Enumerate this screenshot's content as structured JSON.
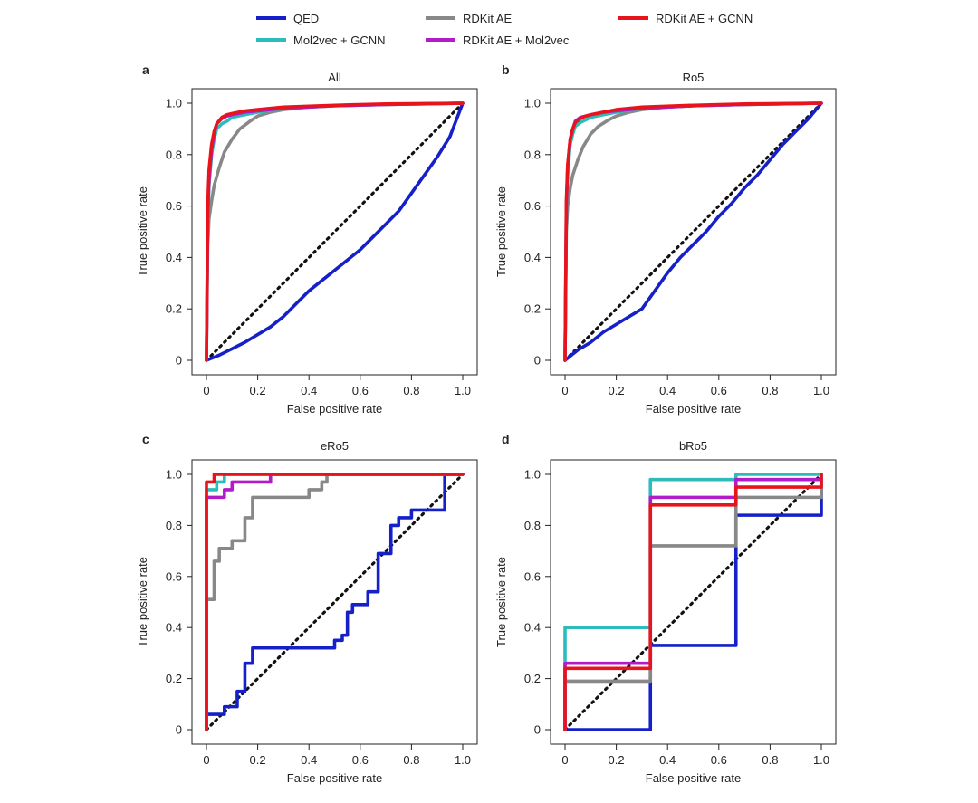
{
  "legend": [
    {
      "key": "qed",
      "label": "QED",
      "color": "#1520c8"
    },
    {
      "key": "rdkit_ae",
      "label": "RDKit AE",
      "color": "#888888"
    },
    {
      "key": "rdkit_gcnn",
      "label": "RDKit AE + GCNN",
      "color": "#e8141c"
    },
    {
      "key": "mol2vec_gcnn",
      "label": "Mol2vec + GCNN",
      "color": "#2cbcbc"
    },
    {
      "key": "rdkit_mol2vec",
      "label": "RDKit AE + Mol2vec",
      "color": "#b21cc8"
    }
  ],
  "chart_data": [
    {
      "panel": "a",
      "title": "All",
      "type": "line",
      "xlabel": "False positive rate",
      "ylabel": "True positive rate",
      "xlim": [
        0,
        1
      ],
      "ylim": [
        0,
        1
      ],
      "xticks": [
        "0",
        "0.2",
        "0.4",
        "0.6",
        "0.8",
        "1.0"
      ],
      "yticks": [
        "0",
        "0.2",
        "0.4",
        "0.6",
        "0.8",
        "1.0"
      ],
      "diagonal": true,
      "series": [
        {
          "key": "qed",
          "name": "QED",
          "step": false,
          "x": [
            0,
            0.05,
            0.1,
            0.15,
            0.2,
            0.25,
            0.3,
            0.35,
            0.4,
            0.45,
            0.5,
            0.55,
            0.6,
            0.65,
            0.7,
            0.75,
            0.8,
            0.85,
            0.9,
            0.95,
            1.0
          ],
          "y": [
            0,
            0.02,
            0.045,
            0.07,
            0.1,
            0.13,
            0.17,
            0.22,
            0.27,
            0.31,
            0.35,
            0.39,
            0.43,
            0.48,
            0.53,
            0.58,
            0.65,
            0.72,
            0.79,
            0.87,
            1.0
          ]
        },
        {
          "key": "rdkit_ae",
          "name": "RDKit AE",
          "step": false,
          "x": [
            0,
            0.005,
            0.01,
            0.02,
            0.03,
            0.05,
            0.07,
            0.1,
            0.13,
            0.17,
            0.2,
            0.25,
            0.3,
            0.4,
            0.5,
            0.7,
            1.0
          ],
          "y": [
            0,
            0.45,
            0.55,
            0.62,
            0.68,
            0.75,
            0.81,
            0.86,
            0.9,
            0.93,
            0.95,
            0.965,
            0.975,
            0.985,
            0.99,
            0.995,
            1.0
          ]
        },
        {
          "key": "mol2vec_gcnn",
          "name": "Mol2vec + GCNN",
          "step": false,
          "x": [
            0,
            0.005,
            0.01,
            0.02,
            0.03,
            0.04,
            0.06,
            0.08,
            0.1,
            0.15,
            0.2,
            0.3,
            0.5,
            0.7,
            1.0
          ],
          "y": [
            0,
            0.55,
            0.68,
            0.8,
            0.86,
            0.9,
            0.92,
            0.93,
            0.945,
            0.955,
            0.965,
            0.98,
            0.99,
            0.995,
            1.0
          ]
        },
        {
          "key": "rdkit_mol2vec",
          "name": "RDKit AE + Mol2vec",
          "step": false,
          "x": [
            0,
            0.005,
            0.01,
            0.02,
            0.03,
            0.04,
            0.06,
            0.08,
            0.1,
            0.15,
            0.2,
            0.3,
            0.5,
            0.7,
            1.0
          ],
          "y": [
            0,
            0.56,
            0.7,
            0.82,
            0.88,
            0.92,
            0.94,
            0.95,
            0.955,
            0.965,
            0.97,
            0.98,
            0.99,
            0.995,
            1.0
          ]
        },
        {
          "key": "rdkit_gcnn",
          "name": "RDKit AE + GCNN",
          "step": false,
          "x": [
            0,
            0.005,
            0.01,
            0.02,
            0.03,
            0.04,
            0.06,
            0.08,
            0.1,
            0.15,
            0.2,
            0.3,
            0.5,
            0.7,
            1.0
          ],
          "y": [
            0,
            0.6,
            0.74,
            0.84,
            0.89,
            0.92,
            0.945,
            0.955,
            0.96,
            0.97,
            0.975,
            0.985,
            0.992,
            0.997,
            1.0
          ]
        }
      ]
    },
    {
      "panel": "b",
      "title": "Ro5",
      "type": "line",
      "xlabel": "False positive rate",
      "ylabel": "True positive rate",
      "xlim": [
        0,
        1
      ],
      "ylim": [
        0,
        1
      ],
      "xticks": [
        "0",
        "0.2",
        "0.4",
        "0.6",
        "0.8",
        "1.0"
      ],
      "yticks": [
        "0",
        "0.2",
        "0.4",
        "0.6",
        "0.8",
        "1.0"
      ],
      "diagonal": true,
      "series": [
        {
          "key": "qed",
          "name": "QED",
          "step": false,
          "x": [
            0,
            0.05,
            0.1,
            0.15,
            0.2,
            0.25,
            0.3,
            0.35,
            0.4,
            0.45,
            0.5,
            0.55,
            0.6,
            0.65,
            0.7,
            0.75,
            0.8,
            0.85,
            0.9,
            0.95,
            1.0
          ],
          "y": [
            0,
            0.04,
            0.07,
            0.11,
            0.14,
            0.17,
            0.2,
            0.27,
            0.34,
            0.4,
            0.45,
            0.5,
            0.56,
            0.61,
            0.67,
            0.72,
            0.78,
            0.84,
            0.89,
            0.94,
            1.0
          ]
        },
        {
          "key": "rdkit_ae",
          "name": "RDKit AE",
          "step": false,
          "x": [
            0,
            0.005,
            0.01,
            0.02,
            0.03,
            0.05,
            0.07,
            0.1,
            0.13,
            0.17,
            0.2,
            0.25,
            0.3,
            0.4,
            0.5,
            0.7,
            1.0
          ],
          "y": [
            0,
            0.5,
            0.6,
            0.67,
            0.72,
            0.78,
            0.83,
            0.88,
            0.91,
            0.935,
            0.95,
            0.965,
            0.975,
            0.985,
            0.99,
            0.995,
            1.0
          ]
        },
        {
          "key": "mol2vec_gcnn",
          "name": "Mol2vec + GCNN",
          "step": false,
          "x": [
            0,
            0.005,
            0.01,
            0.02,
            0.03,
            0.04,
            0.06,
            0.08,
            0.1,
            0.15,
            0.2,
            0.3,
            0.5,
            0.7,
            1.0
          ],
          "y": [
            0,
            0.58,
            0.72,
            0.84,
            0.88,
            0.91,
            0.925,
            0.935,
            0.945,
            0.955,
            0.965,
            0.98,
            0.99,
            0.995,
            1.0
          ]
        },
        {
          "key": "rdkit_mol2vec",
          "name": "RDKit AE + Mol2vec",
          "step": false,
          "x": [
            0,
            0.005,
            0.01,
            0.02,
            0.03,
            0.04,
            0.06,
            0.08,
            0.1,
            0.15,
            0.2,
            0.3,
            0.5,
            0.7,
            1.0
          ],
          "y": [
            0,
            0.6,
            0.75,
            0.86,
            0.9,
            0.93,
            0.945,
            0.95,
            0.955,
            0.965,
            0.97,
            0.98,
            0.99,
            0.995,
            1.0
          ]
        },
        {
          "key": "rdkit_gcnn",
          "name": "RDKit AE + GCNN",
          "step": false,
          "x": [
            0,
            0.005,
            0.01,
            0.02,
            0.03,
            0.04,
            0.06,
            0.08,
            0.1,
            0.15,
            0.2,
            0.3,
            0.5,
            0.7,
            1.0
          ],
          "y": [
            0,
            0.62,
            0.76,
            0.86,
            0.9,
            0.925,
            0.94,
            0.95,
            0.955,
            0.965,
            0.975,
            0.985,
            0.992,
            0.997,
            1.0
          ]
        }
      ]
    },
    {
      "panel": "c",
      "title": "eRo5",
      "type": "line",
      "xlabel": "False positive rate",
      "ylabel": "True positive rate",
      "xlim": [
        0,
        1
      ],
      "ylim": [
        0,
        1
      ],
      "xticks": [
        "0",
        "0.2",
        "0.4",
        "0.6",
        "0.8",
        "1.0"
      ],
      "yticks": [
        "0",
        "0.2",
        "0.4",
        "0.6",
        "0.8",
        "1.0"
      ],
      "diagonal": true,
      "series": [
        {
          "key": "qed",
          "name": "QED",
          "step": true,
          "x": [
            0,
            0.07,
            0.12,
            0.15,
            0.18,
            0.25,
            0.5,
            0.53,
            0.55,
            0.57,
            0.6,
            0.63,
            0.67,
            0.72,
            0.75,
            0.78,
            0.8,
            0.85,
            0.93,
            1.0
          ],
          "y": [
            0.06,
            0.09,
            0.15,
            0.26,
            0.32,
            0.32,
            0.35,
            0.37,
            0.46,
            0.49,
            0.49,
            0.54,
            0.69,
            0.8,
            0.83,
            0.83,
            0.86,
            0.86,
            1.0,
            1.0
          ]
        },
        {
          "key": "rdkit_ae",
          "name": "RDKit AE",
          "step": true,
          "x": [
            0,
            0.03,
            0.05,
            0.08,
            0.1,
            0.13,
            0.15,
            0.18,
            0.2,
            0.4,
            0.45,
            0.47,
            1.0
          ],
          "y": [
            0.51,
            0.66,
            0.71,
            0.71,
            0.74,
            0.74,
            0.83,
            0.91,
            0.91,
            0.94,
            0.97,
            1.0,
            1.0
          ]
        },
        {
          "key": "mol2vec_gcnn",
          "name": "Mol2vec + GCNN",
          "step": true,
          "x": [
            0,
            0.02,
            0.04,
            0.07,
            1.0
          ],
          "y": [
            0.94,
            0.94,
            0.97,
            1.0,
            1.0
          ]
        },
        {
          "key": "rdkit_mol2vec",
          "name": "RDKit AE + Mol2vec",
          "step": true,
          "x": [
            0,
            0.02,
            0.07,
            0.1,
            0.14,
            0.25,
            1.0
          ],
          "y": [
            0.91,
            0.91,
            0.94,
            0.97,
            0.97,
            1.0,
            1.0
          ]
        },
        {
          "key": "rdkit_gcnn",
          "name": "RDKit AE + GCNN",
          "step": true,
          "x": [
            0,
            0.01,
            0.03,
            1.0
          ],
          "y": [
            0.97,
            0.97,
            1.0,
            1.0
          ]
        }
      ]
    },
    {
      "panel": "d",
      "title": "bRo5",
      "type": "line",
      "xlabel": "False positive rate",
      "ylabel": "True positive rate",
      "xlim": [
        0,
        1
      ],
      "ylim": [
        0,
        1
      ],
      "xticks": [
        "0",
        "0.2",
        "0.4",
        "0.6",
        "0.8",
        "1.0"
      ],
      "yticks": [
        "0",
        "0.2",
        "0.4",
        "0.6",
        "0.8",
        "1.0"
      ],
      "diagonal": true,
      "series": [
        {
          "key": "qed",
          "name": "QED",
          "step": true,
          "x": [
            0,
            0.333,
            0.667,
            1.0
          ],
          "y": [
            0.0,
            0.33,
            0.84,
            1.0
          ]
        },
        {
          "key": "rdkit_ae",
          "name": "RDKit AE",
          "step": true,
          "x": [
            0,
            0.333,
            0.667,
            1.0
          ],
          "y": [
            0.19,
            0.72,
            0.91,
            0.95
          ]
        },
        {
          "key": "mol2vec_gcnn",
          "name": "Mol2vec + GCNN",
          "step": true,
          "x": [
            0,
            0.333,
            0.667,
            1.0
          ],
          "y": [
            0.4,
            0.98,
            1.0,
            1.0
          ]
        },
        {
          "key": "rdkit_mol2vec",
          "name": "RDKit AE + Mol2vec",
          "step": true,
          "x": [
            0,
            0.333,
            0.667,
            1.0
          ],
          "y": [
            0.26,
            0.91,
            0.98,
            0.98
          ]
        },
        {
          "key": "rdkit_gcnn",
          "name": "RDKit AE + GCNN",
          "step": true,
          "x": [
            0,
            0.333,
            0.667,
            1.0
          ],
          "y": [
            0.24,
            0.88,
            0.95,
            1.0
          ]
        }
      ]
    }
  ]
}
